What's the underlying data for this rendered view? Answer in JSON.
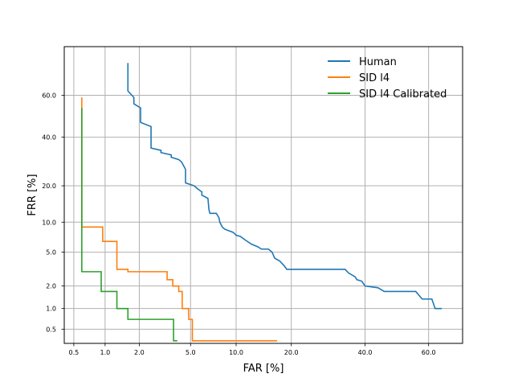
{
  "chart_data": {
    "type": "line",
    "title": "",
    "xlabel": "FAR [%]",
    "ylabel": "FRR [%]",
    "x_scale": "probit",
    "y_scale": "probit",
    "xlim": [
      0.4,
      70
    ],
    "ylim": [
      0.3,
      80
    ],
    "grid": true,
    "legend_position": "top-right",
    "xticks": [
      {
        "value": 0.5,
        "label": "0.5"
      },
      {
        "value": 1.0,
        "label": "1.0"
      },
      {
        "value": 2.0,
        "label": "2.0"
      },
      {
        "value": 5.0,
        "label": "5.0"
      },
      {
        "value": 10.0,
        "label": "10.0"
      },
      {
        "value": 20.0,
        "label": "20.0"
      },
      {
        "value": 40.0,
        "label": "40.0"
      },
      {
        "value": 60.0,
        "label": "60.0"
      }
    ],
    "yticks": [
      {
        "value": 0.5,
        "label": "0.5"
      },
      {
        "value": 1.0,
        "label": "1.0"
      },
      {
        "value": 2.0,
        "label": "2.0"
      },
      {
        "value": 5.0,
        "label": "5.0"
      },
      {
        "value": 10.0,
        "label": "10.0"
      },
      {
        "value": 20.0,
        "label": "20.0"
      },
      {
        "value": 40.0,
        "label": "40.0"
      },
      {
        "value": 60.0,
        "label": "60.0"
      }
    ],
    "series": [
      {
        "name": "Human",
        "color": "#1f77b4",
        "points": [
          [
            1.6,
            74
          ],
          [
            1.6,
            62
          ],
          [
            1.8,
            59
          ],
          [
            1.8,
            56
          ],
          [
            2.05,
            54
          ],
          [
            2.05,
            47
          ],
          [
            2.5,
            45
          ],
          [
            2.5,
            35
          ],
          [
            3.0,
            34
          ],
          [
            3.0,
            33
          ],
          [
            3.6,
            32
          ],
          [
            3.6,
            31
          ],
          [
            4.1,
            30
          ],
          [
            4.3,
            29
          ],
          [
            4.5,
            27
          ],
          [
            4.6,
            26
          ],
          [
            4.6,
            21
          ],
          [
            5.3,
            20
          ],
          [
            5.6,
            19
          ],
          [
            6.0,
            18
          ],
          [
            6.0,
            17
          ],
          [
            6.6,
            16
          ],
          [
            6.7,
            13
          ],
          [
            6.8,
            12
          ],
          [
            7.5,
            12
          ],
          [
            7.8,
            11
          ],
          [
            7.9,
            10
          ],
          [
            8.2,
            9
          ],
          [
            8.5,
            8.6
          ],
          [
            9.0,
            8.3
          ],
          [
            9.6,
            8.0
          ],
          [
            10.0,
            7.5
          ],
          [
            10.6,
            7.3
          ],
          [
            11.5,
            6.6
          ],
          [
            12.3,
            6.1
          ],
          [
            13.4,
            5.7
          ],
          [
            14.0,
            5.4
          ],
          [
            15.3,
            5.4
          ],
          [
            16.0,
            5.0
          ],
          [
            16.5,
            4.3
          ],
          [
            17.5,
            4.0
          ],
          [
            18.5,
            3.5
          ],
          [
            19.0,
            3.2
          ],
          [
            25.0,
            3.2
          ],
          [
            34.0,
            3.2
          ],
          [
            35.0,
            2.9
          ],
          [
            37.0,
            2.6
          ],
          [
            37.5,
            2.4
          ],
          [
            39.0,
            2.3
          ],
          [
            40.0,
            2.0
          ],
          [
            44.0,
            1.9
          ],
          [
            46.0,
            1.7
          ],
          [
            52.0,
            1.7
          ],
          [
            56.0,
            1.7
          ],
          [
            58.0,
            1.35
          ],
          [
            61.0,
            1.35
          ],
          [
            62.0,
            1.0
          ],
          [
            64.0,
            1.0
          ]
        ]
      },
      {
        "name": "SID l4",
        "color": "#ff7f0e",
        "points": [
          [
            0.6,
            59
          ],
          [
            0.6,
            9.0
          ],
          [
            0.95,
            9.0
          ],
          [
            0.95,
            6.5
          ],
          [
            1.28,
            6.5
          ],
          [
            1.28,
            3.2
          ],
          [
            1.6,
            3.2
          ],
          [
            1.6,
            3.0
          ],
          [
            3.35,
            3.0
          ],
          [
            3.35,
            2.4
          ],
          [
            3.7,
            2.4
          ],
          [
            3.7,
            2.0
          ],
          [
            4.1,
            2.0
          ],
          [
            4.1,
            1.7
          ],
          [
            4.35,
            1.7
          ],
          [
            4.35,
            1.0
          ],
          [
            4.85,
            1.0
          ],
          [
            4.85,
            0.7
          ],
          [
            5.15,
            0.7
          ],
          [
            5.15,
            0.33
          ],
          [
            17.0,
            0.33
          ]
        ]
      },
      {
        "name": "SID l4 Calibrated",
        "color": "#2ca02c",
        "points": [
          [
            0.6,
            54
          ],
          [
            0.6,
            3.0
          ],
          [
            0.92,
            3.0
          ],
          [
            0.92,
            1.7
          ],
          [
            1.28,
            1.7
          ],
          [
            1.28,
            1.0
          ],
          [
            1.6,
            1.0
          ],
          [
            1.6,
            0.7
          ],
          [
            3.75,
            0.7
          ],
          [
            3.75,
            0.33
          ],
          [
            4.0,
            0.33
          ]
        ]
      }
    ]
  }
}
